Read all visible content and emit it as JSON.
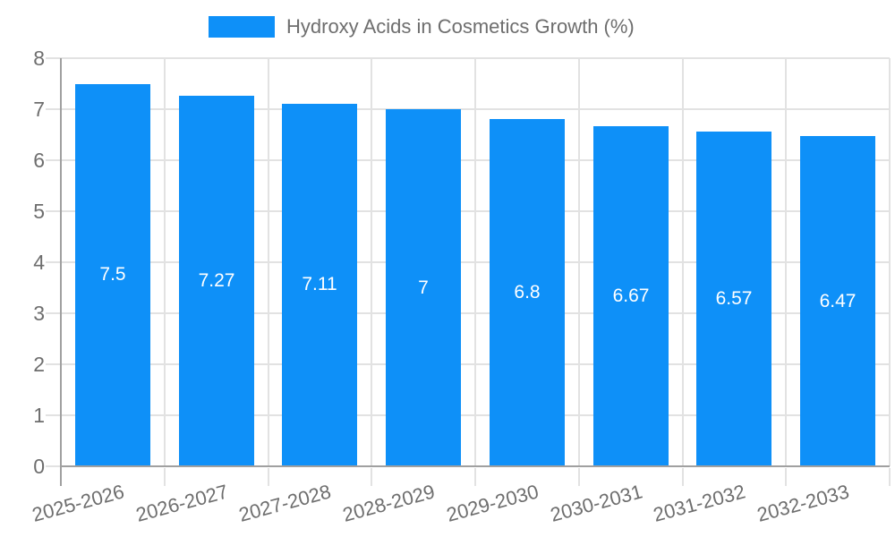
{
  "legend": {
    "label": "Hydroxy Acids in Cosmetics Growth (%)",
    "swatch_color": "#0e90f8"
  },
  "chart_data": {
    "type": "bar",
    "title": "Hydroxy Acids in Cosmetics Growth (%)",
    "categories": [
      "2025-2026",
      "2026-2027",
      "2027-2028",
      "2028-2029",
      "2029-2030",
      "2030-2031",
      "2031-2032",
      "2032-2033"
    ],
    "values": [
      7.5,
      7.27,
      7.11,
      7,
      6.8,
      6.67,
      6.57,
      6.47
    ],
    "value_labels": [
      "7.5",
      "7.27",
      "7.11",
      "7",
      "6.8",
      "6.67",
      "6.57",
      "6.47"
    ],
    "xlabel": "",
    "ylabel": "",
    "ylim": [
      0,
      8
    ],
    "yticks": [
      0,
      1,
      2,
      3,
      4,
      5,
      6,
      7,
      8
    ],
    "grid": true,
    "legend_position": "top-center",
    "bar_color": "#0e90f8",
    "value_label_color": "#ffffff"
  },
  "colors": {
    "background": "#ffffff",
    "text": "#6e6e6e",
    "grid": "#e2e2e2",
    "axis": "#a0a0a0"
  }
}
